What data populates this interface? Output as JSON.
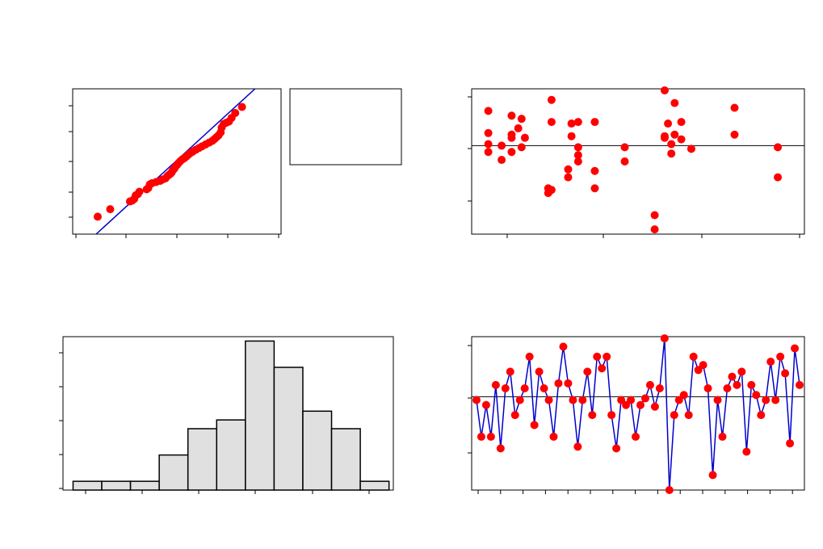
{
  "colors": {
    "point": "#ff0000",
    "line": "#0000cc",
    "bar_fill": "#e0e0e0",
    "axis": "#000000"
  },
  "chart_data": [
    {
      "type": "scatter",
      "panel": "normal-probability-plot",
      "x_range": [
        0,
        4
      ],
      "y_range": [
        0,
        6
      ],
      "points": [
        [
          0.48,
          0.72
        ],
        [
          0.72,
          1.03
        ],
        [
          1.1,
          1.35
        ],
        [
          1.14,
          1.38
        ],
        [
          1.18,
          1.45
        ],
        [
          1.21,
          1.6
        ],
        [
          1.25,
          1.65
        ],
        [
          1.28,
          1.75
        ],
        [
          1.42,
          1.85
        ],
        [
          1.45,
          1.9
        ],
        [
          1.48,
          2.05
        ],
        [
          1.52,
          2.1
        ],
        [
          1.6,
          2.15
        ],
        [
          1.68,
          2.2
        ],
        [
          1.72,
          2.25
        ],
        [
          1.78,
          2.3
        ],
        [
          1.82,
          2.4
        ],
        [
          1.85,
          2.45
        ],
        [
          1.88,
          2.5
        ],
        [
          1.9,
          2.55
        ],
        [
          1.92,
          2.63
        ],
        [
          1.95,
          2.7
        ],
        [
          1.97,
          2.78
        ],
        [
          2.0,
          2.85
        ],
        [
          2.03,
          2.93
        ],
        [
          2.06,
          3.0
        ],
        [
          2.1,
          3.08
        ],
        [
          2.14,
          3.13
        ],
        [
          2.18,
          3.2
        ],
        [
          2.22,
          3.28
        ],
        [
          2.26,
          3.35
        ],
        [
          2.3,
          3.4
        ],
        [
          2.36,
          3.48
        ],
        [
          2.42,
          3.55
        ],
        [
          2.48,
          3.62
        ],
        [
          2.55,
          3.7
        ],
        [
          2.62,
          3.78
        ],
        [
          2.68,
          3.85
        ],
        [
          2.72,
          3.92
        ],
        [
          2.76,
          4.0
        ],
        [
          2.8,
          4.08
        ],
        [
          2.84,
          4.2
        ],
        [
          2.86,
          4.4
        ],
        [
          2.9,
          4.55
        ],
        [
          2.95,
          4.6
        ],
        [
          3.05,
          4.8
        ],
        [
          3.12,
          5.0
        ],
        [
          3.0,
          4.65
        ],
        [
          3.25,
          5.25
        ]
      ],
      "fit_line": [
        [
          0.45,
          0.0
        ],
        [
          3.5,
          6.0
        ]
      ]
    },
    {
      "type": "table",
      "panel": "statistics-box",
      "rows": []
    },
    {
      "type": "scatter",
      "panel": "residuals-vs-fits",
      "x_range": [
        0,
        10
      ],
      "y_range": [
        -2.8,
        1.8
      ],
      "reference_line": 0,
      "points": [
        [
          0.5,
          1.1
        ],
        [
          0.5,
          0.4
        ],
        [
          0.5,
          0.05
        ],
        [
          0.5,
          -0.2
        ],
        [
          0.9,
          0.0
        ],
        [
          0.9,
          -0.45
        ],
        [
          1.2,
          0.95
        ],
        [
          1.2,
          0.35
        ],
        [
          1.2,
          0.25
        ],
        [
          1.2,
          -0.2
        ],
        [
          1.4,
          0.55
        ],
        [
          1.5,
          0.85
        ],
        [
          1.5,
          -0.05
        ],
        [
          1.6,
          0.25
        ],
        [
          2.4,
          1.45
        ],
        [
          2.4,
          0.75
        ],
        [
          2.3,
          -1.35
        ],
        [
          2.3,
          -1.5
        ],
        [
          2.4,
          -1.4
        ],
        [
          2.9,
          -0.75
        ],
        [
          2.9,
          -1.0
        ],
        [
          3.0,
          0.7
        ],
        [
          3.0,
          0.3
        ],
        [
          3.2,
          0.75
        ],
        [
          3.2,
          -0.05
        ],
        [
          3.2,
          -0.3
        ],
        [
          3.2,
          -0.5
        ],
        [
          3.7,
          0.75
        ],
        [
          3.7,
          -0.8
        ],
        [
          3.7,
          -1.35
        ],
        [
          4.6,
          -0.05
        ],
        [
          4.6,
          -0.5
        ],
        [
          5.5,
          -2.2
        ],
        [
          5.5,
          -2.65
        ],
        [
          5.8,
          1.75
        ],
        [
          5.8,
          0.3
        ],
        [
          5.8,
          0.25
        ],
        [
          5.9,
          0.7
        ],
        [
          6.0,
          0.05
        ],
        [
          6.0,
          -0.25
        ],
        [
          6.1,
          1.35
        ],
        [
          6.1,
          0.35
        ],
        [
          6.3,
          0.75
        ],
        [
          6.3,
          0.2
        ],
        [
          6.6,
          -0.1
        ],
        [
          7.9,
          1.2
        ],
        [
          7.9,
          0.35
        ],
        [
          9.2,
          -0.05
        ],
        [
          9.2,
          -1.0
        ]
      ]
    },
    {
      "type": "bar",
      "panel": "histogram",
      "x_range": [
        0,
        11.5
      ],
      "y_range": [
        0,
        17.5
      ],
      "categories": [
        "1",
        "2",
        "3",
        "4",
        "5",
        "6",
        "7",
        "8",
        "9",
        "10",
        "11"
      ],
      "values": [
        1,
        1,
        1,
        4,
        7,
        8,
        17,
        14,
        9,
        7,
        1
      ]
    },
    {
      "type": "line",
      "panel": "residuals-vs-order",
      "x_range": [
        0,
        51
      ],
      "y_range": [
        -2.8,
        1.8
      ],
      "reference_line": 0,
      "values": [
        -0.1,
        -1.2,
        -0.25,
        -1.2,
        0.35,
        -1.55,
        0.25,
        0.75,
        -0.55,
        -0.1,
        0.25,
        1.2,
        -0.85,
        0.75,
        0.25,
        -0.1,
        -1.2,
        0.4,
        1.5,
        0.4,
        -0.1,
        -1.5,
        -0.1,
        0.75,
        -0.55,
        1.2,
        0.85,
        1.2,
        -0.55,
        -1.55,
        -0.1,
        -0.25,
        -0.1,
        -1.2,
        -0.25,
        -0.05,
        0.35,
        -0.3,
        0.25,
        1.75,
        -2.8,
        -0.55,
        -0.1,
        0.05,
        -0.55,
        1.2,
        0.8,
        0.95,
        0.25,
        -2.35,
        -0.1,
        -1.2,
        0.25,
        0.6,
        0.35,
        0.75,
        -1.65,
        0.35,
        0.05,
        -0.55,
        -0.1,
        1.05,
        -0.1,
        1.2,
        0.7,
        -1.4,
        1.45,
        0.35
      ]
    }
  ]
}
